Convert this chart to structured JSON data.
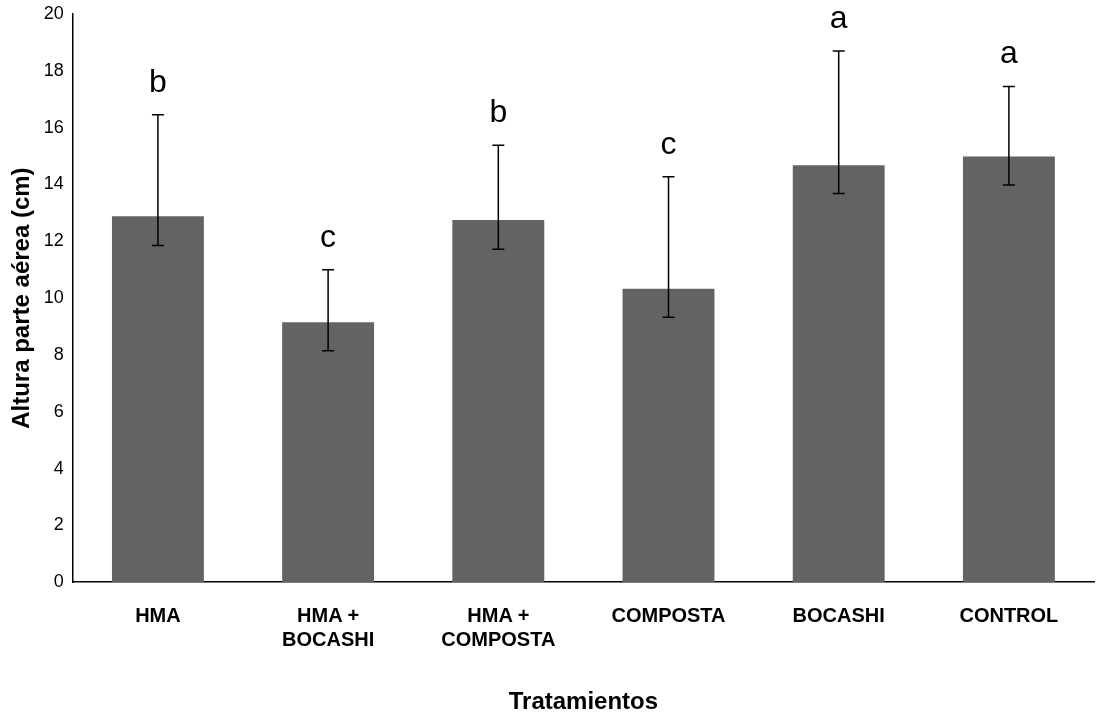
{
  "chart_data": {
    "type": "bar",
    "xlabel": "Tratamientos",
    "ylabel": "Altura parte aérea (cm)",
    "categories": [
      "HMA",
      "HMA + BOCASHI",
      "HMA + COMPOSTA",
      "COMPOSTA",
      "BOCASHI",
      "CONTROL"
    ],
    "values": [
      12.88,
      9.15,
      12.75,
      10.33,
      14.68,
      14.98
    ],
    "errors": [
      [
        11.85,
        16.45
      ],
      [
        8.15,
        11.0
      ],
      [
        11.72,
        15.38
      ],
      [
        9.33,
        14.27
      ],
      [
        13.68,
        18.7
      ],
      [
        13.98,
        17.45
      ]
    ],
    "color": "#636363",
    "ylim": [
      0,
      20
    ],
    "yticks": [
      0,
      2,
      4,
      6,
      8,
      10,
      12,
      14,
      16,
      18,
      20
    ],
    "grid": false,
    "legend": false,
    "annotations": [
      "b",
      "c",
      "b",
      "c",
      "a",
      "a"
    ]
  }
}
